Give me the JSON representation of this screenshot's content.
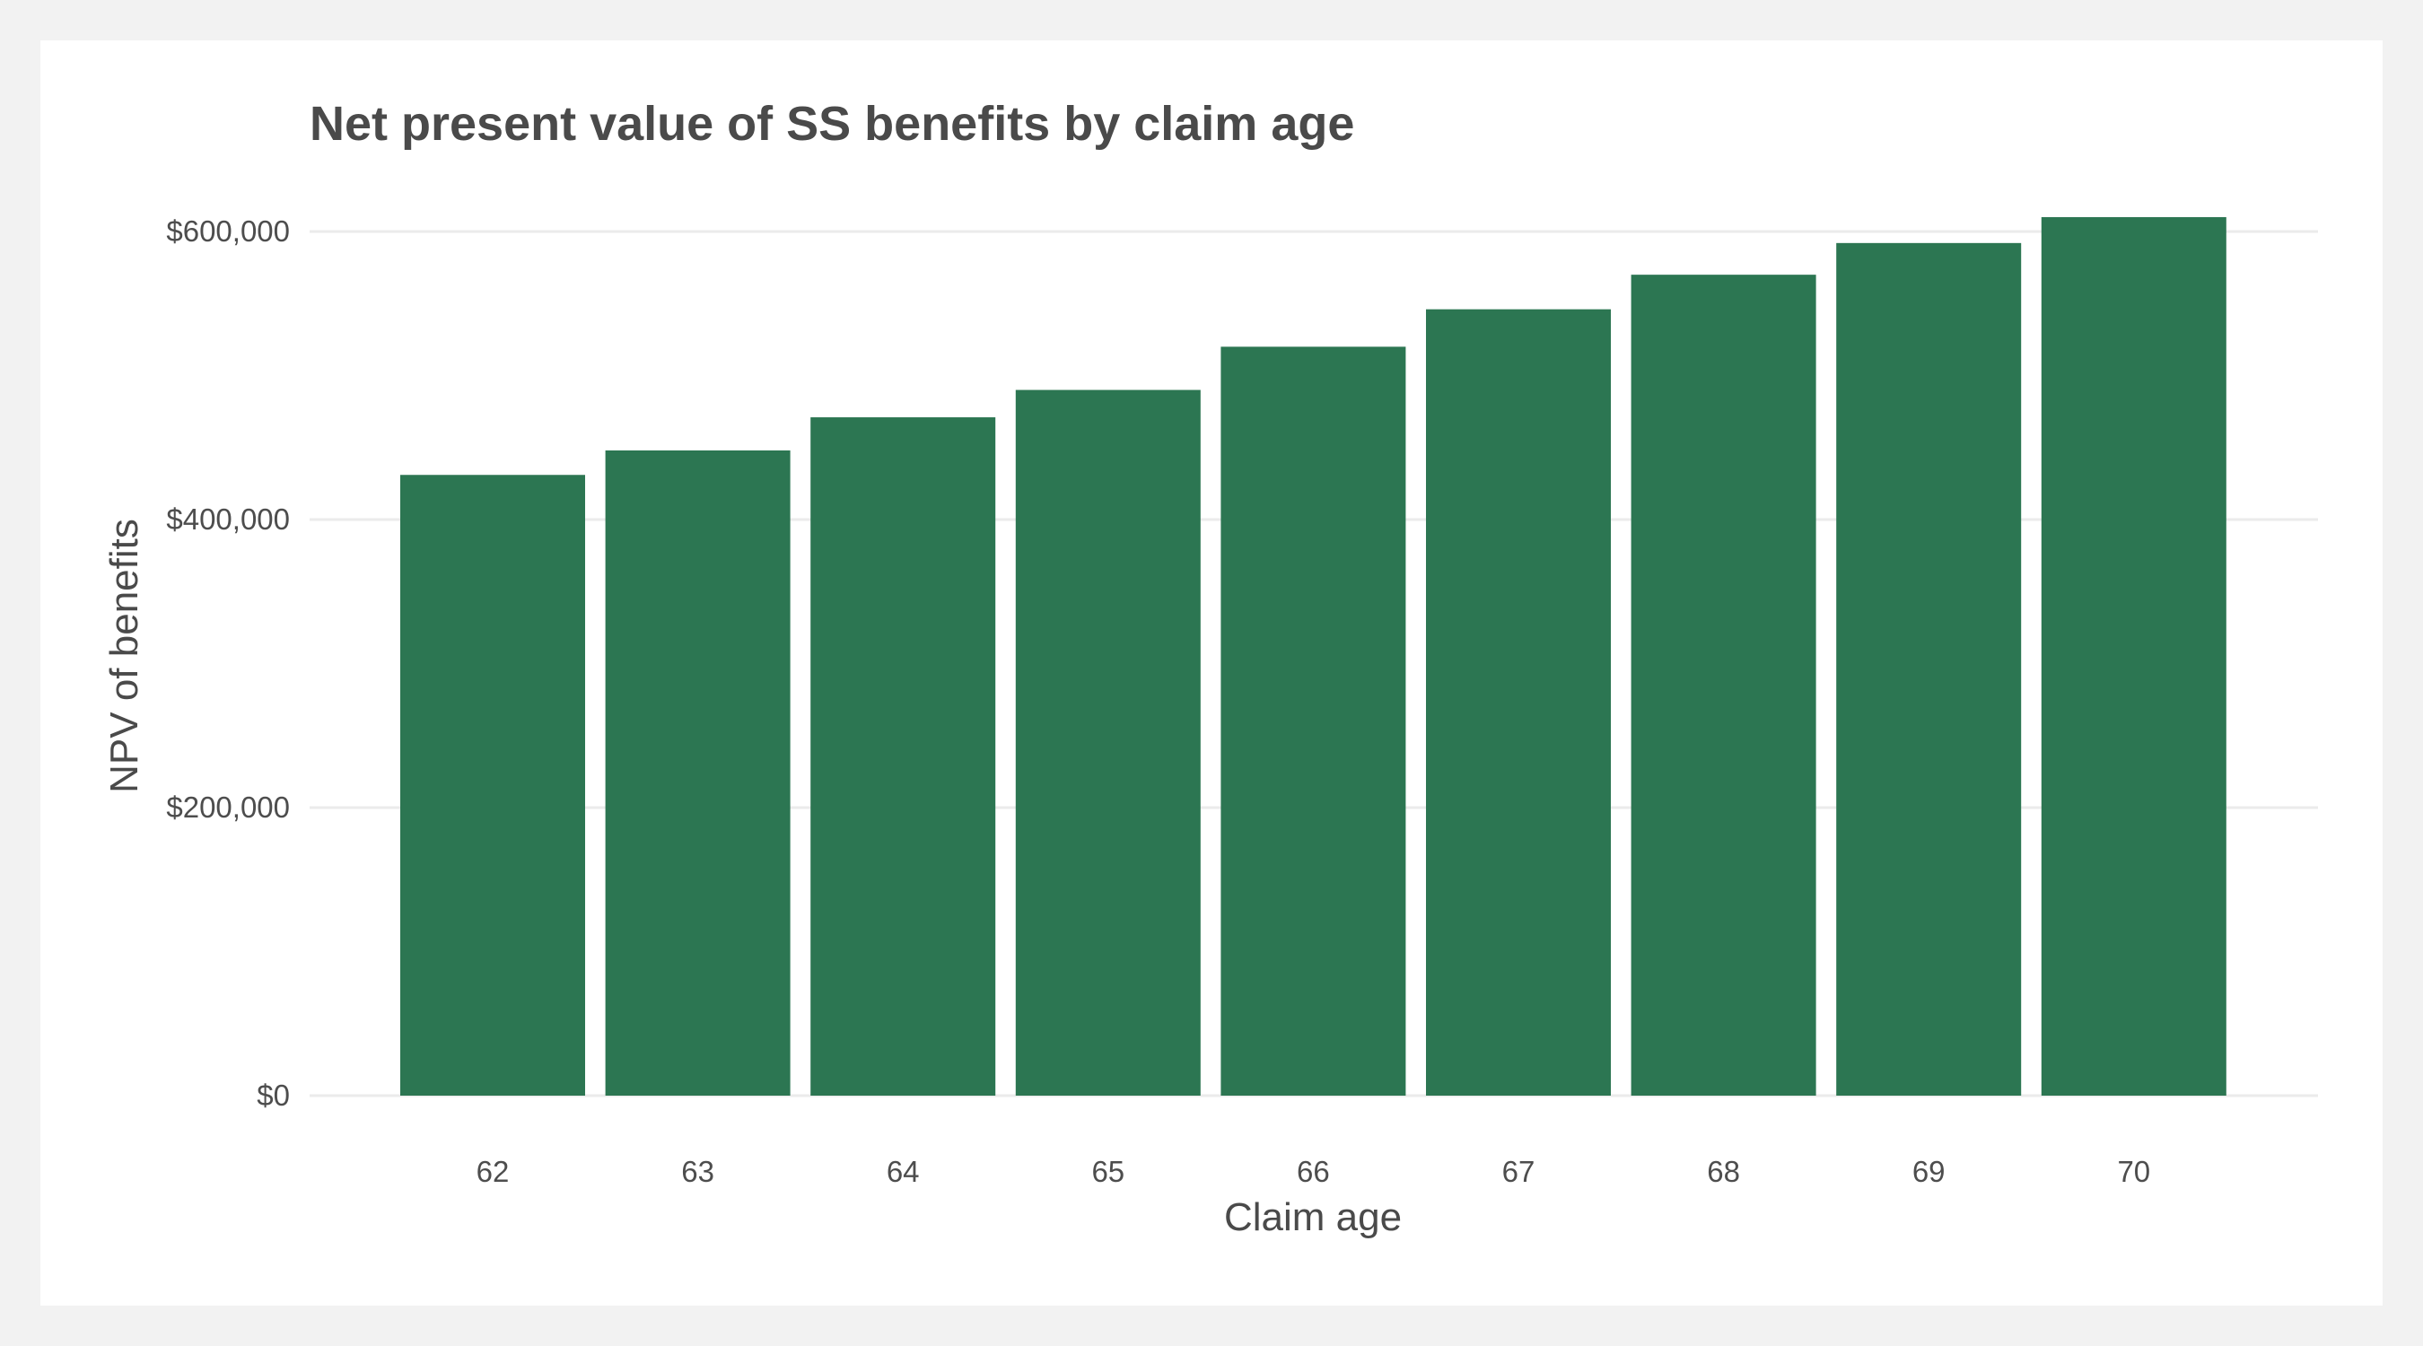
{
  "chart_data": {
    "type": "bar",
    "title": "Net present value of SS benefits by claim age",
    "xlabel": "Claim age",
    "ylabel": "NPV of benefits",
    "categories": [
      "62",
      "63",
      "64",
      "65",
      "66",
      "67",
      "68",
      "69",
      "70"
    ],
    "values": [
      431000,
      448000,
      471000,
      490000,
      520000,
      546000,
      570000,
      592000,
      610000
    ],
    "ylim": [
      0,
      600000
    ],
    "yticks": [
      0,
      200000,
      400000,
      600000
    ],
    "ytick_labels": [
      "$0",
      "$200,000",
      "$400,000",
      "$600,000"
    ],
    "bar_color": "#2c7652",
    "grid": true,
    "legend": "none"
  }
}
